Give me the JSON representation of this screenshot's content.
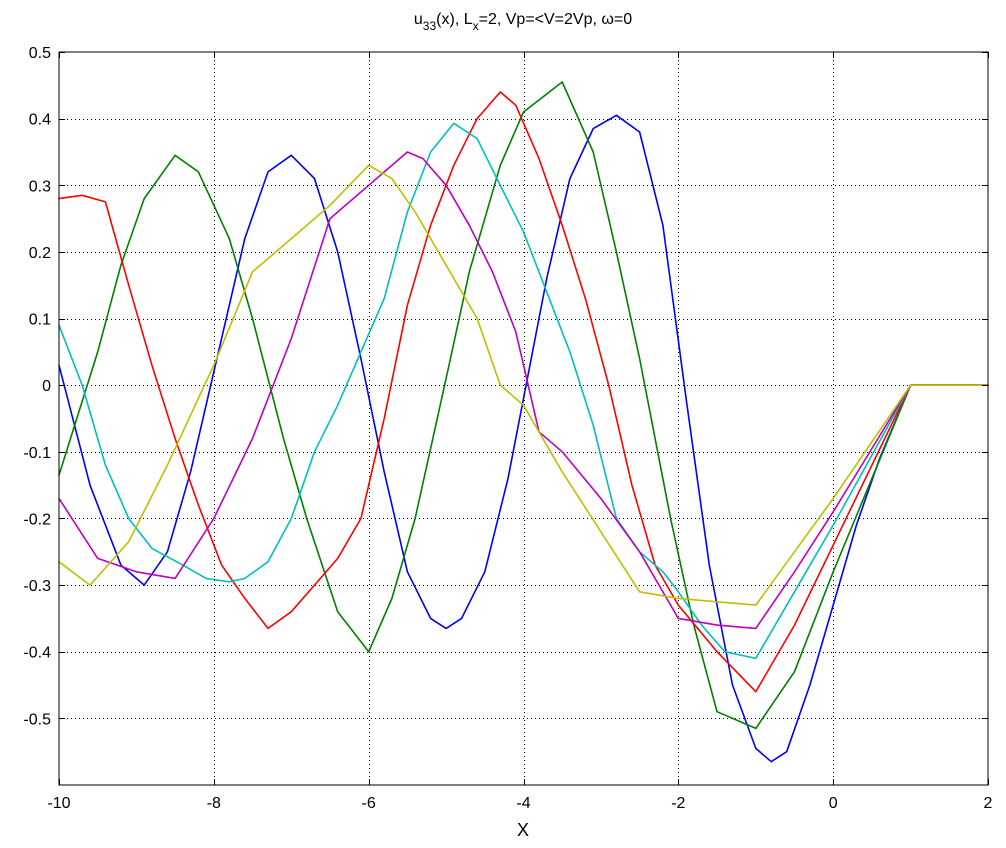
{
  "chart_data": {
    "type": "line",
    "title": {
      "u": "u",
      "sub33": "33",
      "mid": "(x), L",
      "subx": "x",
      "rest": "=2,  Vp=<V=2Vp, ω=0"
    },
    "xlabel": "X",
    "ylabel": "",
    "xlim": [
      -10,
      2
    ],
    "ylim": [
      -0.6,
      0.5
    ],
    "xticks": [
      -10,
      -8,
      -6,
      -4,
      -2,
      0,
      2
    ],
    "yticks": [
      -0.5,
      -0.4,
      -0.3,
      -0.2,
      -0.1,
      0,
      0.1,
      0.2,
      0.3,
      0.4,
      0.5
    ],
    "xtick_labels": [
      "-10",
      "-8",
      "-6",
      "-4",
      "-2",
      "0",
      "2"
    ],
    "ytick_labels": [
      "-0.5",
      "-0.4",
      "-0.3",
      "-0.2",
      "-0.1",
      "0",
      "0.1",
      "0.2",
      "0.3",
      "0.4",
      "0.5"
    ],
    "grid": true,
    "series": [
      {
        "color": "#0000ff",
        "x": [
          -10,
          -9.6,
          -9.2,
          -8.9,
          -8.6,
          -8.3,
          -8,
          -7.6,
          -7.3,
          -7,
          -6.7,
          -6.4,
          -6.1,
          -5.8,
          -5.5,
          -5.2,
          -5,
          -4.8,
          -4.5,
          -4.2,
          -4,
          -3.7,
          -3.4,
          -3.1,
          -2.8,
          -2.5,
          -2.2,
          -1.9,
          -1.6,
          -1.3,
          -1,
          -0.8,
          -0.6,
          -0.3,
          0,
          0.3,
          0.6,
          1,
          2
        ],
        "y": [
          0.03,
          -0.15,
          -0.27,
          -0.3,
          -0.25,
          -0.13,
          0.02,
          0.22,
          0.32,
          0.345,
          0.31,
          0.2,
          0.04,
          -0.13,
          -0.28,
          -0.35,
          -0.365,
          -0.35,
          -0.28,
          -0.14,
          -0.02,
          0.16,
          0.31,
          0.385,
          0.405,
          0.38,
          0.24,
          -0.02,
          -0.27,
          -0.45,
          -0.545,
          -0.565,
          -0.55,
          -0.45,
          -0.33,
          -0.21,
          -0.11,
          0,
          0
        ]
      },
      {
        "color": "#008000",
        "x": [
          -10,
          -9.5,
          -9.2,
          -8.9,
          -8.5,
          -8.2,
          -7.8,
          -7.5,
          -7.1,
          -6.8,
          -6.4,
          -6,
          -5.7,
          -5.4,
          -5,
          -4.7,
          -4.3,
          -4,
          -3.5,
          -3.1,
          -2.8,
          -2.5,
          -2.1,
          -1.8,
          -1.5,
          -1,
          -0.5,
          0,
          1,
          2
        ],
        "y": [
          -0.135,
          0.05,
          0.18,
          0.28,
          0.345,
          0.32,
          0.22,
          0.1,
          -0.08,
          -0.2,
          -0.34,
          -0.4,
          -0.32,
          -0.2,
          0.01,
          0.17,
          0.33,
          0.41,
          0.455,
          0.35,
          0.2,
          0.04,
          -0.2,
          -0.36,
          -0.49,
          -0.515,
          -0.43,
          -0.28,
          0,
          0
        ]
      },
      {
        "color": "#ff0000",
        "x": [
          -10,
          -9.7,
          -9.4,
          -9.1,
          -8.8,
          -8.5,
          -8.2,
          -7.9,
          -7.6,
          -7.3,
          -7,
          -6.7,
          -6.4,
          -6.1,
          -5.8,
          -5.5,
          -5.2,
          -4.9,
          -4.6,
          -4.3,
          -4.1,
          -3.8,
          -3.5,
          -3.2,
          -2.9,
          -2.6,
          -2.3,
          -2,
          -1.5,
          -1,
          -0.5,
          0,
          1,
          2
        ],
        "y": [
          0.28,
          0.285,
          0.275,
          0.15,
          0.03,
          -0.08,
          -0.18,
          -0.27,
          -0.32,
          -0.365,
          -0.34,
          -0.3,
          -0.26,
          -0.2,
          -0.05,
          0.12,
          0.24,
          0.33,
          0.4,
          0.44,
          0.42,
          0.34,
          0.24,
          0.13,
          0,
          -0.15,
          -0.27,
          -0.33,
          -0.4,
          -0.46,
          -0.36,
          -0.24,
          0,
          0
        ]
      },
      {
        "color": "#00bfbf",
        "x": [
          -10,
          -9.7,
          -9.4,
          -9.1,
          -8.8,
          -8.4,
          -8.1,
          -7.8,
          -7.6,
          -7.3,
          -7,
          -6.7,
          -6.4,
          -6.1,
          -5.8,
          -5.5,
          -5.2,
          -4.9,
          -4.6,
          -4.3,
          -4,
          -3.7,
          -3.4,
          -3.1,
          -2.8,
          -2.5,
          -2.2,
          -2,
          -1.7,
          -1.4,
          -1,
          -0.5,
          0,
          1,
          2
        ],
        "y": [
          0.09,
          0,
          -0.12,
          -0.2,
          -0.245,
          -0.27,
          -0.29,
          -0.295,
          -0.29,
          -0.265,
          -0.2,
          -0.1,
          -0.03,
          0.05,
          0.13,
          0.26,
          0.35,
          0.393,
          0.37,
          0.3,
          0.23,
          0.14,
          0.05,
          -0.06,
          -0.2,
          -0.25,
          -0.28,
          -0.31,
          -0.36,
          -0.4,
          -0.41,
          -0.31,
          -0.21,
          0,
          0
        ]
      },
      {
        "color": "#bf00bf",
        "x": [
          -10,
          -9.5,
          -9,
          -8.5,
          -8,
          -7.5,
          -7,
          -6.5,
          -6,
          -5.5,
          -5.3,
          -5,
          -4.7,
          -4.4,
          -4.1,
          -3.8,
          -3.5,
          -3,
          -2.5,
          -2,
          -1.5,
          -1,
          -0.5,
          0,
          1,
          2
        ],
        "y": [
          -0.17,
          -0.26,
          -0.28,
          -0.29,
          -0.2,
          -0.08,
          0.07,
          0.25,
          0.3,
          0.35,
          0.34,
          0.3,
          0.24,
          0.17,
          0.08,
          -0.07,
          -0.1,
          -0.17,
          -0.25,
          -0.35,
          -0.36,
          -0.365,
          -0.28,
          -0.19,
          0,
          0
        ]
      },
      {
        "color": "#bfbf00",
        "x": [
          -10,
          -9.6,
          -9.1,
          -8.6,
          -8,
          -7.5,
          -7,
          -6.5,
          -6,
          -5.7,
          -5.4,
          -5,
          -4.6,
          -4.3,
          -4,
          -3.5,
          -3,
          -2.5,
          -2,
          -1.5,
          -1,
          -0.5,
          0,
          1,
          2
        ],
        "y": [
          -0.265,
          -0.3,
          -0.235,
          -0.12,
          0.03,
          0.17,
          0.22,
          0.27,
          0.33,
          0.31,
          0.26,
          0.18,
          0.1,
          0,
          -0.03,
          -0.13,
          -0.22,
          -0.31,
          -0.32,
          -0.325,
          -0.33,
          -0.25,
          -0.17,
          0,
          0
        ]
      }
    ]
  }
}
